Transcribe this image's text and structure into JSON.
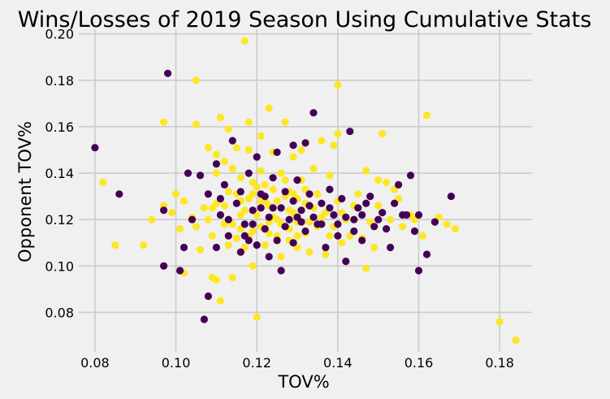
{
  "chart_data": {
    "type": "scatter",
    "title": "Wins/Losses of 2019 Season Using Cumulative Stats",
    "xlabel": "TOV%",
    "ylabel": "Opponent TOV%",
    "xlim": [
      0.076,
      0.188
    ],
    "ylim": [
      0.063,
      0.202
    ],
    "xticks": [
      "0.08",
      "0.10",
      "0.12",
      "0.14",
      "0.16",
      "0.18"
    ],
    "yticks": [
      "0.08",
      "0.10",
      "0.12",
      "0.14",
      "0.16",
      "0.18",
      "0.20"
    ],
    "grid": true,
    "background": "#f0f0f0",
    "grid_color": "#cbcbcb",
    "series_colors": {
      "win": "#fde725",
      "loss": "#440154"
    },
    "series": [
      {
        "key": "win",
        "points": [
          [
            0.082,
            0.136
          ],
          [
            0.085,
            0.109
          ],
          [
            0.092,
            0.109
          ],
          [
            0.094,
            0.12
          ],
          [
            0.097,
            0.162
          ],
          [
            0.097,
            0.126
          ],
          [
            0.099,
            0.123
          ],
          [
            0.1,
            0.131
          ],
          [
            0.101,
            0.116
          ],
          [
            0.102,
            0.128
          ],
          [
            0.102,
            0.097
          ],
          [
            0.104,
            0.121
          ],
          [
            0.105,
            0.18
          ],
          [
            0.105,
            0.161
          ],
          [
            0.105,
            0.117
          ],
          [
            0.106,
            0.107
          ],
          [
            0.107,
            0.125
          ],
          [
            0.108,
            0.151
          ],
          [
            0.109,
            0.095
          ],
          [
            0.109,
            0.125
          ],
          [
            0.109,
            0.113
          ],
          [
            0.11,
            0.148
          ],
          [
            0.11,
            0.14
          ],
          [
            0.11,
            0.094
          ],
          [
            0.111,
            0.164
          ],
          [
            0.111,
            0.085
          ],
          [
            0.112,
            0.145
          ],
          [
            0.113,
            0.159
          ],
          [
            0.113,
            0.109
          ],
          [
            0.114,
            0.142
          ],
          [
            0.114,
            0.095
          ],
          [
            0.115,
            0.151
          ],
          [
            0.116,
            0.138
          ],
          [
            0.116,
            0.128
          ],
          [
            0.116,
            0.122
          ],
          [
            0.117,
            0.197
          ],
          [
            0.117,
            0.108
          ],
          [
            0.118,
            0.162
          ],
          [
            0.118,
            0.15
          ],
          [
            0.119,
            0.136
          ],
          [
            0.119,
            0.115
          ],
          [
            0.119,
            0.1
          ],
          [
            0.12,
            0.078
          ],
          [
            0.121,
            0.156
          ],
          [
            0.121,
            0.141
          ],
          [
            0.122,
            0.128
          ],
          [
            0.122,
            0.109
          ],
          [
            0.123,
            0.168
          ],
          [
            0.123,
            0.119
          ],
          [
            0.124,
            0.149
          ],
          [
            0.124,
            0.133
          ],
          [
            0.125,
            0.113
          ],
          [
            0.126,
            0.104
          ],
          [
            0.127,
            0.162
          ],
          [
            0.127,
            0.137
          ],
          [
            0.128,
            0.124
          ],
          [
            0.128,
            0.111
          ],
          [
            0.129,
            0.147
          ],
          [
            0.129,
            0.131
          ],
          [
            0.13,
            0.119
          ],
          [
            0.13,
            0.108
          ],
          [
            0.131,
            0.137
          ],
          [
            0.131,
            0.15
          ],
          [
            0.132,
            0.114
          ],
          [
            0.133,
            0.126
          ],
          [
            0.133,
            0.106
          ],
          [
            0.134,
            0.142
          ],
          [
            0.135,
            0.131
          ],
          [
            0.136,
            0.121
          ],
          [
            0.136,
            0.154
          ],
          [
            0.137,
            0.105
          ],
          [
            0.138,
            0.139
          ],
          [
            0.139,
            0.152
          ],
          [
            0.139,
            0.117
          ],
          [
            0.14,
            0.178
          ],
          [
            0.14,
            0.157
          ],
          [
            0.14,
            0.128
          ],
          [
            0.141,
            0.11
          ],
          [
            0.142,
            0.12
          ],
          [
            0.143,
            0.113
          ],
          [
            0.144,
            0.126
          ],
          [
            0.145,
            0.131
          ],
          [
            0.146,
            0.112
          ],
          [
            0.147,
            0.099
          ],
          [
            0.147,
            0.141
          ],
          [
            0.148,
            0.119
          ],
          [
            0.149,
            0.108
          ],
          [
            0.15,
            0.126
          ],
          [
            0.15,
            0.137
          ],
          [
            0.151,
            0.157
          ],
          [
            0.152,
            0.136
          ],
          [
            0.153,
            0.12
          ],
          [
            0.154,
            0.133
          ],
          [
            0.155,
            0.129
          ],
          [
            0.156,
            0.117
          ],
          [
            0.158,
            0.122
          ],
          [
            0.159,
            0.12
          ],
          [
            0.161,
            0.113
          ],
          [
            0.162,
            0.165
          ],
          [
            0.165,
            0.121
          ],
          [
            0.167,
            0.118
          ],
          [
            0.169,
            0.116
          ],
          [
            0.18,
            0.076
          ],
          [
            0.184,
            0.068
          ],
          [
            0.112,
            0.126
          ],
          [
            0.114,
            0.118
          ],
          [
            0.115,
            0.131
          ],
          [
            0.117,
            0.124
          ],
          [
            0.118,
            0.113
          ],
          [
            0.119,
            0.131
          ],
          [
            0.12,
            0.122
          ],
          [
            0.121,
            0.117
          ],
          [
            0.122,
            0.135
          ],
          [
            0.123,
            0.126
          ],
          [
            0.124,
            0.121
          ],
          [
            0.125,
            0.128
          ],
          [
            0.126,
            0.118
          ],
          [
            0.127,
            0.13
          ],
          [
            0.128,
            0.116
          ],
          [
            0.129,
            0.123
          ],
          [
            0.13,
            0.129
          ],
          [
            0.131,
            0.124
          ],
          [
            0.132,
            0.133
          ],
          [
            0.133,
            0.119
          ],
          [
            0.134,
            0.125
          ],
          [
            0.135,
            0.117
          ],
          [
            0.108,
            0.12
          ],
          [
            0.11,
            0.127
          ],
          [
            0.112,
            0.118
          ],
          [
            0.113,
            0.132
          ],
          [
            0.115,
            0.112
          ],
          [
            0.116,
            0.116
          ],
          [
            0.118,
            0.129
          ],
          [
            0.12,
            0.134
          ],
          [
            0.121,
            0.128
          ],
          [
            0.123,
            0.114
          ],
          [
            0.125,
            0.12
          ],
          [
            0.126,
            0.14
          ],
          [
            0.128,
            0.132
          ],
          [
            0.13,
            0.113
          ],
          [
            0.132,
            0.127
          ],
          [
            0.137,
            0.123
          ],
          [
            0.138,
            0.113
          ],
          [
            0.141,
            0.123
          ]
        ]
      },
      {
        "key": "loss",
        "points": [
          [
            0.08,
            0.151
          ],
          [
            0.086,
            0.131
          ],
          [
            0.097,
            0.1
          ],
          [
            0.097,
            0.124
          ],
          [
            0.098,
            0.183
          ],
          [
            0.101,
            0.098
          ],
          [
            0.102,
            0.108
          ],
          [
            0.103,
            0.14
          ],
          [
            0.104,
            0.12
          ],
          [
            0.106,
            0.139
          ],
          [
            0.107,
            0.077
          ],
          [
            0.108,
            0.087
          ],
          [
            0.108,
            0.131
          ],
          [
            0.11,
            0.144
          ],
          [
            0.11,
            0.108
          ],
          [
            0.111,
            0.122
          ],
          [
            0.112,
            0.135
          ],
          [
            0.113,
            0.113
          ],
          [
            0.114,
            0.154
          ],
          [
            0.115,
            0.127
          ],
          [
            0.116,
            0.106
          ],
          [
            0.117,
            0.118
          ],
          [
            0.118,
            0.14
          ],
          [
            0.118,
            0.111
          ],
          [
            0.119,
            0.124
          ],
          [
            0.12,
            0.147
          ],
          [
            0.12,
            0.109
          ],
          [
            0.121,
            0.131
          ],
          [
            0.122,
            0.116
          ],
          [
            0.123,
            0.104
          ],
          [
            0.124,
            0.138
          ],
          [
            0.124,
            0.125
          ],
          [
            0.125,
            0.149
          ],
          [
            0.125,
            0.111
          ],
          [
            0.126,
            0.098
          ],
          [
            0.127,
            0.132
          ],
          [
            0.128,
            0.12
          ],
          [
            0.129,
            0.152
          ],
          [
            0.129,
            0.11
          ],
          [
            0.13,
            0.137
          ],
          [
            0.131,
            0.124
          ],
          [
            0.132,
            0.153
          ],
          [
            0.132,
            0.115
          ],
          [
            0.133,
            0.131
          ],
          [
            0.134,
            0.166
          ],
          [
            0.135,
            0.118
          ],
          [
            0.136,
            0.127
          ],
          [
            0.137,
            0.108
          ],
          [
            0.138,
            0.133
          ],
          [
            0.139,
            0.122
          ],
          [
            0.14,
            0.113
          ],
          [
            0.141,
            0.129
          ],
          [
            0.142,
            0.102
          ],
          [
            0.143,
            0.158
          ],
          [
            0.144,
            0.12
          ],
          [
            0.145,
            0.125
          ],
          [
            0.146,
            0.111
          ],
          [
            0.147,
            0.127
          ],
          [
            0.148,
            0.13
          ],
          [
            0.149,
            0.117
          ],
          [
            0.15,
            0.12
          ],
          [
            0.151,
            0.123
          ],
          [
            0.152,
            0.116
          ],
          [
            0.153,
            0.108
          ],
          [
            0.154,
            0.127
          ],
          [
            0.155,
            0.135
          ],
          [
            0.156,
            0.122
          ],
          [
            0.157,
            0.122
          ],
          [
            0.158,
            0.139
          ],
          [
            0.159,
            0.115
          ],
          [
            0.16,
            0.122
          ],
          [
            0.16,
            0.098
          ],
          [
            0.162,
            0.105
          ],
          [
            0.164,
            0.119
          ],
          [
            0.168,
            0.13
          ],
          [
            0.111,
            0.129
          ],
          [
            0.113,
            0.12
          ],
          [
            0.116,
            0.132
          ],
          [
            0.117,
            0.113
          ],
          [
            0.119,
            0.118
          ],
          [
            0.121,
            0.125
          ],
          [
            0.122,
            0.13
          ],
          [
            0.123,
            0.121
          ],
          [
            0.126,
            0.125
          ],
          [
            0.127,
            0.117
          ],
          [
            0.129,
            0.128
          ],
          [
            0.13,
            0.121
          ],
          [
            0.131,
            0.119
          ],
          [
            0.133,
            0.126
          ],
          [
            0.134,
            0.121
          ],
          [
            0.136,
            0.118
          ],
          [
            0.138,
            0.125
          ],
          [
            0.14,
            0.118
          ],
          [
            0.142,
            0.121
          ],
          [
            0.144,
            0.115
          ],
          [
            0.146,
            0.122
          ]
        ]
      }
    ]
  }
}
